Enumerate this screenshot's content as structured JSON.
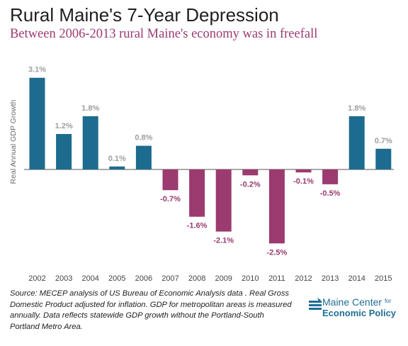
{
  "header": {
    "title": "Rural Maine's 7-Year Depression",
    "subtitle": "Between 2006-2013 rural Maine's economy was in freefall"
  },
  "colors": {
    "positive": "#1d6b8e",
    "negative": "#9b3b70",
    "positive_label": "#9e9e9e",
    "negative_label": "#9b3b70"
  },
  "chart_data": {
    "type": "bar",
    "title": "Rural Maine's 7-Year Depression",
    "subtitle": "Between 2006-2013 rural Maine's economy was in freefall",
    "xlabel": "",
    "ylabel": "Real Annual GDP Growth",
    "categories": [
      "2002",
      "2003",
      "2004",
      "2005",
      "2006",
      "2007",
      "2008",
      "2009",
      "2010",
      "2011",
      "2012",
      "2013",
      "2014",
      "2015"
    ],
    "values": [
      3.1,
      1.2,
      1.8,
      0.1,
      0.8,
      -0.7,
      -1.6,
      -2.1,
      -0.2,
      -2.5,
      -0.1,
      -0.5,
      1.8,
      0.7
    ],
    "data_labels": [
      "3.1%",
      "1.2%",
      "1.8%",
      "0.1%",
      "0.8%",
      "-0.7%",
      "-1.6%",
      "-2.1%",
      "-0.2%",
      "-2.5%",
      "-0.1%",
      "-0.5%",
      "1.8%",
      "0.7%"
    ],
    "ylim": [
      -2.5,
      3.1
    ],
    "grid": false,
    "legend": "none"
  },
  "footer": {
    "source": "Source: MECEP analysis of US Bureau of Economic Analysis data . Real Gross Domestic Product adjusted for inflation. GDP for metropolitan areas is measured annually. Data reflects statewide GDP growth without the Portland-South Portland Metro Area."
  },
  "logo": {
    "line1": "Maine Center",
    "line1_small": "for",
    "line2": "Economic Policy"
  }
}
